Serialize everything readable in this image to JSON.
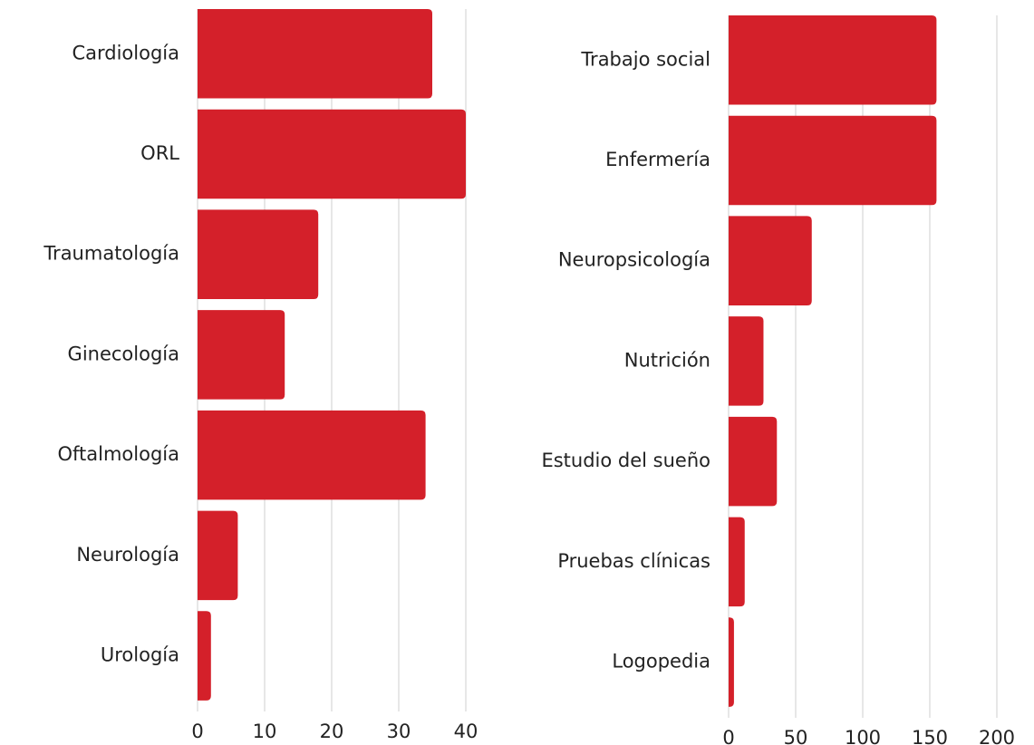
{
  "chart_data": [
    {
      "type": "barh",
      "categories": [
        "Cardiología",
        "ORL",
        "Traumatología",
        "Ginecología",
        "Oftalmología",
        "Neurología",
        "Urología"
      ],
      "values": [
        35,
        40,
        18,
        13,
        34,
        6,
        2
      ],
      "color": "#d4202a",
      "xlim": [
        0,
        40
      ],
      "xticks": [
        0,
        10,
        20,
        30,
        40
      ],
      "grid": true
    },
    {
      "type": "barh",
      "categories": [
        "Trabajo social",
        "Enfermería",
        "Neuropsicología",
        "Nutrición",
        "Estudio del sueño",
        "Pruebas clínicas",
        "Logopedia"
      ],
      "values": [
        155,
        155,
        62,
        26,
        36,
        12,
        4
      ],
      "color": "#d4202a",
      "xlim": [
        0,
        200
      ],
      "xticks": [
        0,
        50,
        100,
        150,
        200
      ],
      "grid": true
    }
  ]
}
